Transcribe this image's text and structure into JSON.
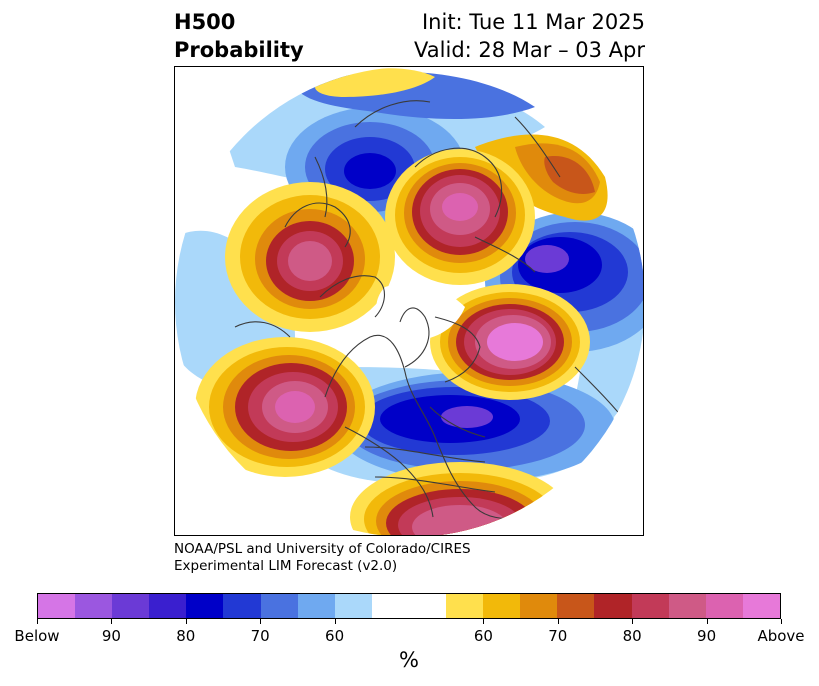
{
  "title": {
    "variable": "H500",
    "product": "Probability",
    "init": "Init: Tue 11 Mar 2025",
    "valid": "Valid: 28 Mar – 03 Apr"
  },
  "credit": {
    "line1": "NOAA/PSL and University of Colorado/CIRES",
    "line2": "Experimental LIM Forecast (v2.0)"
  },
  "colorbar": {
    "unit": "%",
    "colors": [
      "#d575e6",
      "#9b57e0",
      "#6b3ad6",
      "#3a1fcf",
      "#0000c8",
      "#2239d4",
      "#4a72e0",
      "#6fa9f0",
      "#aad8fa",
      "#ffffff",
      "#ffffff",
      "#ffe04d",
      "#f2b90a",
      "#e08a0c",
      "#c8561a",
      "#b02428",
      "#c23a58",
      "#cf5a86",
      "#dc62b0",
      "#e779d9"
    ],
    "tick_labels": [
      "Below",
      "90",
      "80",
      "70",
      "60",
      "60",
      "70",
      "80",
      "90",
      "Above"
    ]
  },
  "map": {
    "projection": "north-polar stereographic",
    "features": [
      "coastlines",
      "country-borders",
      "state-borders"
    ]
  }
}
